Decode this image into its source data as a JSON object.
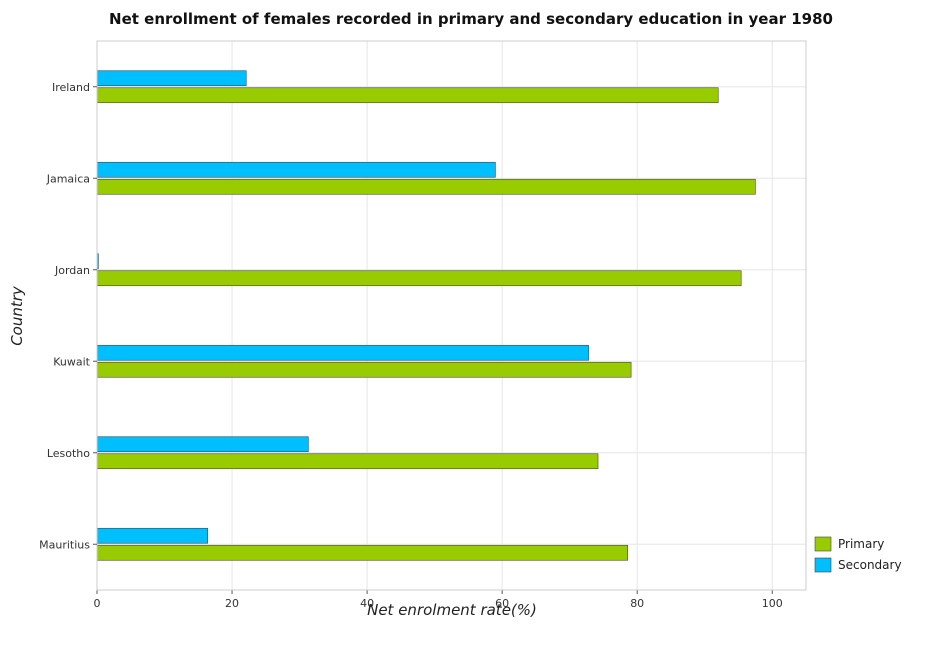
{
  "chart_data": {
    "type": "bar",
    "orientation": "horizontal",
    "title": "Net enrollment of females recorded in primary and secondary education in year 1980",
    "xlabel": "Net enrolment rate(%)",
    "ylabel": "Country",
    "xlim": [
      0,
      105
    ],
    "xticks": [
      0,
      20,
      40,
      60,
      80,
      100
    ],
    "categories": [
      "Ireland",
      "Jamaica",
      "Jordan",
      "Kuwait",
      "Lesotho",
      "Mauritius"
    ],
    "series": [
      {
        "name": "Primary",
        "color": "#99cc00",
        "values": [
          92.0,
          97.5,
          95.4,
          79.1,
          74.2,
          78.6
        ]
      },
      {
        "name": "Secondary",
        "color": "#00bfff",
        "values": [
          22.1,
          59.0,
          0.2,
          72.8,
          31.3,
          16.4
        ]
      }
    ],
    "grid": true,
    "legend_position": "bottom-right"
  }
}
